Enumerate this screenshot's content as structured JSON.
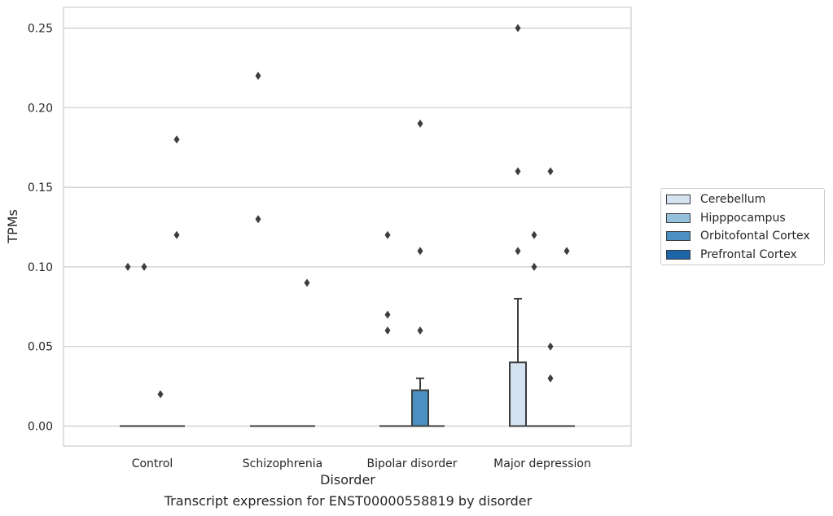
{
  "chart_data": {
    "type": "box",
    "xlabel": "Disorder",
    "ylabel": "TPMs",
    "ylim": [
      -0.012,
      0.263
    ],
    "yticks": [
      "0.00",
      "0.05",
      "0.10",
      "0.15",
      "0.20",
      "0.25"
    ],
    "grid": true,
    "legend_position": "right",
    "categories": [
      "Control",
      "Schizophrenia",
      "Bipolar disorder",
      "Major depression"
    ],
    "series": [
      {
        "name": "Cerebellum",
        "color": "#d4e3f1"
      },
      {
        "name": "Hipppocampus",
        "color": "#94c0dc"
      },
      {
        "name": "Orbitofontal Cortex",
        "color": "#4a90c0"
      },
      {
        "name": "Prefrontal Cortex",
        "color": "#1e64a8"
      }
    ],
    "boxes": [
      {
        "category": 0,
        "series": 0,
        "q1": 0,
        "median": 0,
        "q3": 0,
        "whisker_low": 0,
        "whisker_high": 0,
        "outliers": [
          0.1
        ]
      },
      {
        "category": 0,
        "series": 1,
        "q1": 0,
        "median": 0,
        "q3": 0,
        "whisker_low": 0,
        "whisker_high": 0,
        "outliers": [
          0.1
        ]
      },
      {
        "category": 0,
        "series": 2,
        "q1": 0,
        "median": 0,
        "q3": 0,
        "whisker_low": 0,
        "whisker_high": 0,
        "outliers": [
          0.02
        ]
      },
      {
        "category": 0,
        "series": 3,
        "q1": 0,
        "median": 0,
        "q3": 0,
        "whisker_low": 0,
        "whisker_high": 0,
        "outliers": [
          0.18,
          0.12
        ]
      },
      {
        "category": 1,
        "series": 0,
        "q1": 0,
        "median": 0,
        "q3": 0,
        "whisker_low": 0,
        "whisker_high": 0,
        "outliers": [
          0.22,
          0.13
        ]
      },
      {
        "category": 1,
        "series": 1,
        "q1": 0,
        "median": 0,
        "q3": 0,
        "whisker_low": 0,
        "whisker_high": 0,
        "outliers": []
      },
      {
        "category": 1,
        "series": 2,
        "q1": 0,
        "median": 0,
        "q3": 0,
        "whisker_low": 0,
        "whisker_high": 0,
        "outliers": []
      },
      {
        "category": 1,
        "series": 3,
        "q1": 0,
        "median": 0,
        "q3": 0,
        "whisker_low": 0,
        "whisker_high": 0,
        "outliers": [
          0.09
        ]
      },
      {
        "category": 2,
        "series": 0,
        "q1": 0,
        "median": 0,
        "q3": 0,
        "whisker_low": 0,
        "whisker_high": 0,
        "outliers": [
          0.12,
          0.07,
          0.06
        ]
      },
      {
        "category": 2,
        "series": 1,
        "q1": 0,
        "median": 0,
        "q3": 0,
        "whisker_low": 0,
        "whisker_high": 0,
        "outliers": []
      },
      {
        "category": 2,
        "series": 2,
        "q1": 0,
        "median": 0,
        "q3": 0.0225,
        "whisker_low": 0,
        "whisker_high": 0.03,
        "outliers": [
          0.19,
          0.11,
          0.06
        ]
      },
      {
        "category": 2,
        "series": 3,
        "q1": 0,
        "median": 0,
        "q3": 0,
        "whisker_low": 0,
        "whisker_high": 0,
        "outliers": []
      },
      {
        "category": 3,
        "series": 0,
        "q1": 0,
        "median": 0,
        "q3": 0.04,
        "whisker_low": 0,
        "whisker_high": 0.08,
        "outliers": [
          0.25,
          0.16,
          0.11
        ]
      },
      {
        "category": 3,
        "series": 1,
        "q1": 0,
        "median": 0,
        "q3": 0,
        "whisker_low": 0,
        "whisker_high": 0,
        "outliers": [
          0.12,
          0.1
        ]
      },
      {
        "category": 3,
        "series": 2,
        "q1": 0,
        "median": 0,
        "q3": 0,
        "whisker_low": 0,
        "whisker_high": 0,
        "outliers": [
          0.16,
          0.05,
          0.03
        ]
      },
      {
        "category": 3,
        "series": 3,
        "q1": 0,
        "median": 0,
        "q3": 0,
        "whisker_low": 0,
        "whisker_high": 0,
        "outliers": [
          0.11
        ]
      }
    ]
  },
  "caption": "Transcript expression for ENST00000558819 by disorder"
}
